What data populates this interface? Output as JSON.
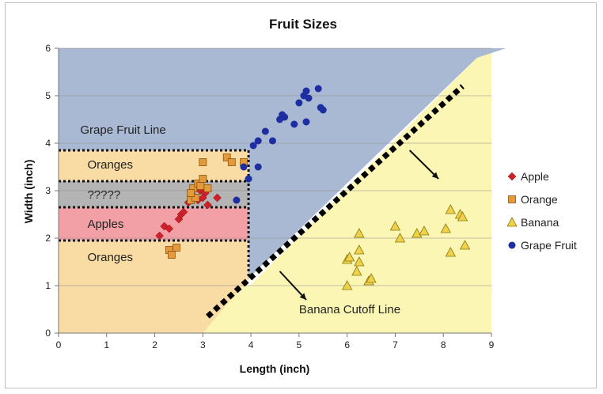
{
  "chart_data": {
    "type": "scatter",
    "title": "Fruit Sizes",
    "xlabel": "Length (inch)",
    "ylabel": "Width (inch)",
    "xlim": [
      0,
      9
    ],
    "ylim": [
      0,
      6
    ],
    "x_ticks": [
      "0",
      "1",
      "2",
      "3",
      "4",
      "5",
      "6",
      "7",
      "8",
      "9"
    ],
    "y_ticks": [
      "0",
      "1",
      "2",
      "3",
      "4",
      "5",
      "6"
    ],
    "grid": "horizontal",
    "legend_position": "right",
    "regions": [
      {
        "label": "Grape Fruit Line",
        "color": "#aab9d3"
      },
      {
        "label": "Oranges",
        "color": "#f9dca3",
        "x": [
          0,
          3.95
        ],
        "y": [
          3.2,
          3.85
        ]
      },
      {
        "label": "?????",
        "color": "#b4b4b4",
        "x": [
          0,
          3.95
        ],
        "y": [
          2.65,
          3.2
        ]
      },
      {
        "label": "Apples",
        "color": "#f2a0a6",
        "x": [
          0,
          3.95
        ],
        "y": [
          1.95,
          2.65
        ]
      },
      {
        "label": "Oranges",
        "color": "#f9dca3",
        "x": [
          0,
          3.95
        ],
        "y": [
          0,
          1.95
        ]
      },
      {
        "label": "Banana Cutoff Line",
        "color": "#fbf6b4"
      }
    ],
    "cutoff_line": {
      "x": [
        3.1,
        8.4
      ],
      "y": [
        0.35,
        5.2
      ]
    },
    "series": [
      {
        "name": "Apple",
        "marker": "diamond",
        "color": "#d0202a",
        "points": [
          [
            2.1,
            2.05
          ],
          [
            2.2,
            2.25
          ],
          [
            2.3,
            2.2
          ],
          [
            2.5,
            2.4
          ],
          [
            2.55,
            2.5
          ],
          [
            2.6,
            2.55
          ],
          [
            2.7,
            2.75
          ],
          [
            2.8,
            2.9
          ],
          [
            2.9,
            2.8
          ],
          [
            2.95,
            3.0
          ],
          [
            3.05,
            2.95
          ],
          [
            3.1,
            2.7
          ],
          [
            3.0,
            2.85
          ],
          [
            3.3,
            2.85
          ]
        ]
      },
      {
        "name": "Orange",
        "marker": "square",
        "color": "#e49a3a",
        "points": [
          [
            2.3,
            1.75
          ],
          [
            2.35,
            1.65
          ],
          [
            2.45,
            1.8
          ],
          [
            2.75,
            2.8
          ],
          [
            2.8,
            3.05
          ],
          [
            2.85,
            2.85
          ],
          [
            2.9,
            3.15
          ],
          [
            2.95,
            3.1
          ],
          [
            3.0,
            3.25
          ],
          [
            3.0,
            3.6
          ],
          [
            3.1,
            3.05
          ],
          [
            2.75,
            2.95
          ],
          [
            3.5,
            3.7
          ],
          [
            3.6,
            3.6
          ],
          [
            3.85,
            3.6
          ]
        ]
      },
      {
        "name": "Banana",
        "marker": "triangle",
        "color": "#f0d24a",
        "points": [
          [
            6.0,
            1.0
          ],
          [
            6.0,
            1.55
          ],
          [
            6.05,
            1.6
          ],
          [
            6.2,
            1.3
          ],
          [
            6.25,
            1.5
          ],
          [
            6.25,
            2.1
          ],
          [
            6.25,
            1.75
          ],
          [
            6.45,
            1.1
          ],
          [
            6.5,
            1.15
          ],
          [
            7.0,
            2.25
          ],
          [
            7.1,
            2.0
          ],
          [
            7.45,
            2.1
          ],
          [
            7.6,
            2.15
          ],
          [
            8.05,
            2.2
          ],
          [
            8.15,
            1.7
          ],
          [
            8.15,
            2.6
          ],
          [
            8.35,
            2.5
          ],
          [
            8.4,
            2.45
          ],
          [
            8.45,
            1.85
          ]
        ]
      },
      {
        "name": "Grape Fruit",
        "marker": "circle",
        "color": "#1d2fa0",
        "points": [
          [
            3.7,
            2.8
          ],
          [
            3.85,
            3.5
          ],
          [
            3.95,
            3.25
          ],
          [
            4.05,
            3.95
          ],
          [
            4.15,
            4.05
          ],
          [
            4.15,
            3.5
          ],
          [
            4.3,
            4.25
          ],
          [
            4.45,
            4.05
          ],
          [
            4.6,
            4.5
          ],
          [
            4.65,
            4.6
          ],
          [
            4.7,
            4.55
          ],
          [
            4.9,
            4.4
          ],
          [
            5.0,
            4.85
          ],
          [
            5.1,
            5.0
          ],
          [
            5.15,
            5.1
          ],
          [
            5.2,
            4.95
          ],
          [
            5.15,
            4.45
          ],
          [
            5.4,
            5.15
          ],
          [
            5.45,
            4.75
          ],
          [
            5.5,
            4.7
          ]
        ]
      }
    ]
  }
}
